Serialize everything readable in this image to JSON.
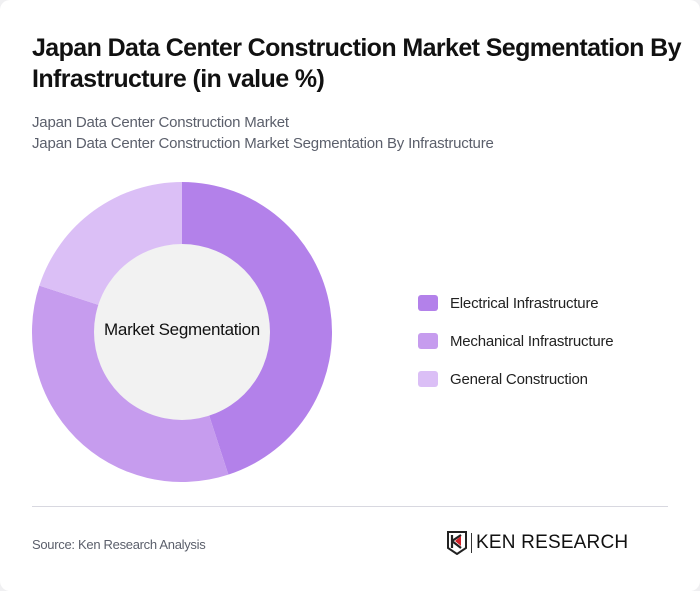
{
  "header": {
    "title": "Japan Data Center Construction Market Segmentation By Infrastructure (in value %)",
    "subtitle_line1": "Japan Data Center Construction Market",
    "subtitle_line2": "Japan Data Center Construction Market Segmentation By Infrastructure"
  },
  "donut": {
    "center_label": "Market Segmentation"
  },
  "legend": [
    {
      "label": "Electrical Infrastructure",
      "color": "#b381ea"
    },
    {
      "label": "Mechanical Infrastructure",
      "color": "#c69cee"
    },
    {
      "label": "General Construction",
      "color": "#dbbff6"
    }
  ],
  "footer": {
    "source": "Source: Ken Research Analysis",
    "logo_text": "KEN RESEARCH"
  },
  "chart_data": {
    "type": "pie",
    "subtype": "donut",
    "title": "Japan Data Center Construction Market Segmentation By Infrastructure (in value %)",
    "center_label": "Market Segmentation",
    "categories": [
      "Electrical Infrastructure",
      "Mechanical Infrastructure",
      "General Construction"
    ],
    "values": [
      45,
      35,
      20
    ],
    "colors": [
      "#b381ea",
      "#c69cee",
      "#dbbff6"
    ],
    "unit": "%",
    "legend_position": "right"
  }
}
